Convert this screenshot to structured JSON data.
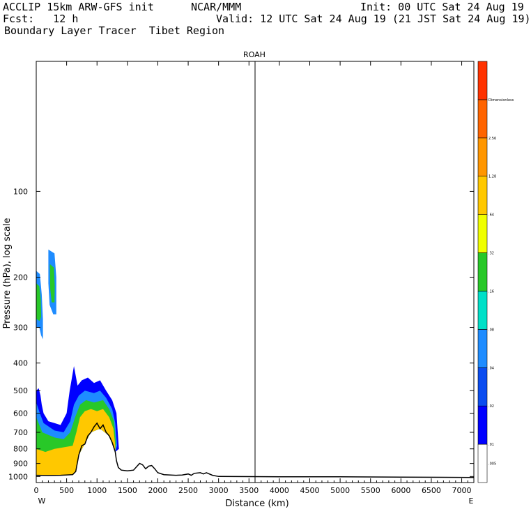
{
  "header": {
    "line1_left": "ACCLIP 15km ARW-GFS init",
    "line1_mid": "NCAR/MMM",
    "line1_right": "Init: 00 UTC Sat 24 Aug 19",
    "line2_left": "Fcst:   12 h",
    "line2_right": "Valid: 12 UTC Sat 24 Aug 19 (21 JST Sat 24 Aug 19)",
    "line3_left": "Boundary Layer Tracer  Tibet Region"
  },
  "chart_data": {
    "type": "heatmap",
    "title": "ROAH",
    "xlabel": "Distance (km)",
    "ylabel": "Pressure (hPa), log scale",
    "xlim": [
      0,
      7200
    ],
    "ylim": [
      1050,
      35
    ],
    "y_scale": "log",
    "x_ticks": [
      0,
      500,
      1000,
      1500,
      2000,
      2500,
      3000,
      3500,
      4000,
      4500,
      5000,
      5500,
      6000,
      6500,
      7000
    ],
    "x_tick_labels": [
      "0",
      "500",
      "1000",
      "1500",
      "2000",
      "2500",
      "3000",
      "3500",
      "4000",
      "4500",
      "5000",
      "5500",
      "6000",
      "6500",
      "7000"
    ],
    "y_ticks": [
      100,
      200,
      300,
      400,
      500,
      600,
      700,
      800,
      900,
      1000
    ],
    "y_tick_labels": [
      "100",
      "200",
      "300",
      "400",
      "500",
      "600",
      "700",
      "800",
      "900",
      "1000"
    ],
    "x_end_labels": [
      "W",
      "E"
    ],
    "marker_line_x": 3600,
    "colorbar": {
      "levels": [
        ".005",
        ".01",
        ".02",
        ".04",
        ".08",
        ".16",
        ".32",
        ".64",
        "1.28",
        "2.56",
        "Dimensionless"
      ],
      "colors": [
        "#ffffff",
        "#0000ff",
        "#0a4cf0",
        "#1e8cff",
        "#00e0c8",
        "#28c828",
        "#f0ff00",
        "#ffc800",
        "#ff9600",
        "#ff6400",
        "#ff3200"
      ]
    },
    "terrain": [
      [
        0,
        990
      ],
      [
        200,
        992
      ],
      [
        400,
        990
      ],
      [
        600,
        985
      ],
      [
        650,
        960
      ],
      [
        700,
        840
      ],
      [
        750,
        780
      ],
      [
        800,
        770
      ],
      [
        850,
        720
      ],
      [
        900,
        700
      ],
      [
        950,
        670
      ],
      [
        1000,
        650
      ],
      [
        1050,
        680
      ],
      [
        1100,
        660
      ],
      [
        1150,
        700
      ],
      [
        1200,
        720
      ],
      [
        1250,
        760
      ],
      [
        1300,
        820
      ],
      [
        1320,
        880
      ],
      [
        1350,
        930
      ],
      [
        1400,
        950
      ],
      [
        1500,
        955
      ],
      [
        1600,
        950
      ],
      [
        1700,
        900
      ],
      [
        1750,
        910
      ],
      [
        1800,
        940
      ],
      [
        1850,
        920
      ],
      [
        1900,
        915
      ],
      [
        1950,
        940
      ],
      [
        2000,
        970
      ],
      [
        2100,
        985
      ],
      [
        2300,
        990
      ],
      [
        2400,
        988
      ],
      [
        2500,
        980
      ],
      [
        2550,
        990
      ],
      [
        2600,
        975
      ],
      [
        2700,
        970
      ],
      [
        2750,
        980
      ],
      [
        2800,
        970
      ],
      [
        2900,
        990
      ],
      [
        3000,
        1000
      ],
      [
        4000,
        1002
      ],
      [
        5000,
        1002
      ],
      [
        6000,
        1005
      ],
      [
        7200,
        1008
      ]
    ],
    "tracer_regions": [
      {
        "level": ".01",
        "outline": [
          [
            0,
            995
          ],
          [
            0,
            500
          ],
          [
            40,
            490
          ],
          [
            70,
            520
          ],
          [
            90,
            560
          ],
          [
            120,
            600
          ],
          [
            200,
            640
          ],
          [
            300,
            650
          ],
          [
            400,
            660
          ],
          [
            500,
            600
          ],
          [
            550,
            500
          ],
          [
            620,
            410
          ],
          [
            680,
            480
          ],
          [
            750,
            460
          ],
          [
            850,
            450
          ],
          [
            950,
            470
          ],
          [
            1050,
            460
          ],
          [
            1150,
            500
          ],
          [
            1250,
            540
          ],
          [
            1320,
            600
          ],
          [
            1360,
            800
          ],
          [
            1300,
            820
          ],
          [
            1200,
            720
          ],
          [
            1050,
            680
          ],
          [
            900,
            700
          ],
          [
            700,
            840
          ],
          [
            650,
            960
          ],
          [
            600,
            985
          ],
          [
            400,
            990
          ],
          [
            200,
            992
          ]
        ]
      },
      {
        "level": ".04",
        "outline": [
          [
            0,
            995
          ],
          [
            0,
            550
          ],
          [
            60,
            600
          ],
          [
            120,
            650
          ],
          [
            300,
            690
          ],
          [
            450,
            700
          ],
          [
            560,
            640
          ],
          [
            620,
            560
          ],
          [
            700,
            520
          ],
          [
            800,
            500
          ],
          [
            950,
            510
          ],
          [
            1050,
            500
          ],
          [
            1150,
            530
          ],
          [
            1250,
            580
          ],
          [
            1300,
            650
          ],
          [
            1330,
            780
          ],
          [
            1300,
            820
          ],
          [
            1200,
            720
          ],
          [
            1050,
            680
          ],
          [
            900,
            700
          ],
          [
            700,
            840
          ],
          [
            650,
            960
          ],
          [
            600,
            985
          ],
          [
            400,
            990
          ],
          [
            200,
            992
          ]
        ]
      },
      {
        "level": ".16",
        "outline": [
          [
            0,
            995
          ],
          [
            0,
            620
          ],
          [
            100,
            700
          ],
          [
            300,
            730
          ],
          [
            450,
            740
          ],
          [
            560,
            700
          ],
          [
            640,
            620
          ],
          [
            720,
            560
          ],
          [
            820,
            540
          ],
          [
            950,
            550
          ],
          [
            1100,
            540
          ],
          [
            1200,
            580
          ],
          [
            1280,
            640
          ],
          [
            1310,
            760
          ],
          [
            1300,
            820
          ],
          [
            1200,
            720
          ],
          [
            1050,
            680
          ],
          [
            900,
            700
          ],
          [
            700,
            840
          ],
          [
            650,
            960
          ],
          [
            600,
            985
          ],
          [
            400,
            990
          ],
          [
            200,
            992
          ]
        ]
      },
      {
        "level": ".64",
        "outline": [
          [
            0,
            995
          ],
          [
            0,
            800
          ],
          [
            150,
            820
          ],
          [
            300,
            800
          ],
          [
            450,
            790
          ],
          [
            600,
            780
          ],
          [
            660,
            700
          ],
          [
            720,
            620
          ],
          [
            800,
            590
          ],
          [
            900,
            580
          ],
          [
            1000,
            590
          ],
          [
            1100,
            580
          ],
          [
            1200,
            620
          ],
          [
            1270,
            680
          ],
          [
            1300,
            780
          ],
          [
            1300,
            820
          ],
          [
            1200,
            720
          ],
          [
            1050,
            680
          ],
          [
            900,
            700
          ],
          [
            700,
            840
          ],
          [
            650,
            960
          ],
          [
            600,
            985
          ],
          [
            400,
            990
          ],
          [
            200,
            992
          ]
        ]
      },
      {
        "level": ".04",
        "outline": [
          [
            0,
            190
          ],
          [
            60,
            195
          ],
          [
            90,
            230
          ],
          [
            110,
            280
          ],
          [
            110,
            330
          ],
          [
            80,
            320
          ],
          [
            50,
            300
          ],
          [
            0,
            300
          ]
        ]
      },
      {
        "level": ".16",
        "outline": [
          [
            0,
            210
          ],
          [
            50,
            215
          ],
          [
            75,
            240
          ],
          [
            80,
            275
          ],
          [
            55,
            285
          ],
          [
            0,
            280
          ]
        ]
      },
      {
        "level": ".04",
        "outline": [
          [
            200,
            160
          ],
          [
            300,
            165
          ],
          [
            330,
            200
          ],
          [
            330,
            270
          ],
          [
            280,
            270
          ],
          [
            220,
            250
          ],
          [
            200,
            210
          ]
        ]
      },
      {
        "level": ".16",
        "outline": [
          [
            225,
            180
          ],
          [
            290,
            185
          ],
          [
            305,
            215
          ],
          [
            300,
            245
          ],
          [
            255,
            245
          ],
          [
            230,
            220
          ]
        ]
      }
    ]
  }
}
